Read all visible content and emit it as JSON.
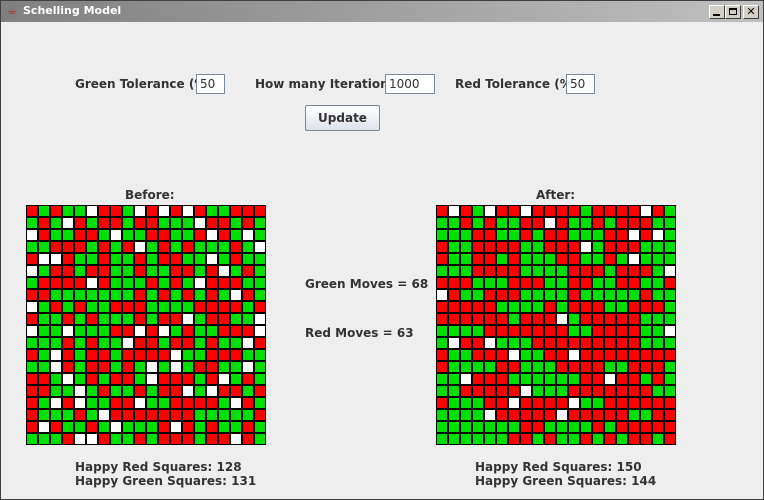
{
  "window": {
    "title": "Schelling Model"
  },
  "controls": {
    "green_tolerance_label": "Green Tolerance (%)",
    "green_tolerance_value": "50",
    "iterations_label": "How many Iterations?",
    "iterations_value": "1000",
    "red_tolerance_label": "Red Tolerance (%)",
    "red_tolerance_value": "50",
    "update_label": "Update"
  },
  "before": {
    "title": "Before:",
    "happy_red": "Happy Red Squares: 128",
    "happy_green": "Happy Green Squares: 131",
    "grid": [
      "RGRGGWRRGWRWRWRGGRRR",
      "GRGWRGRRGRRGGGWRRGRG",
      "WRGGRRGWGGRRGGRWRGWG",
      "GGRRRGRGRWGRGRGGGRGW",
      "RWWRGGRGGRGRRGGWGRGG",
      "WGRRGRRGGRGGRRGRWGRG",
      "GRRRRWRGGGRGRGWRRRGG",
      "RRGGGGGGGRGRGRGRGWRG",
      "WGRGRGGRRRGGGGRRRRGR",
      "RGGRGRGGGRGRRWGRRGGW",
      "WGGWGGGRRWRWGRGGRRRW",
      "GGGRGRGGWRRGRRGRGGWR",
      "RGWRGRRGRRRRWGGRRRGG",
      "GGWRGRRGRGWGWGRRGGWG",
      "RRGWGRGRRGWRRRGRWGRG",
      "RRGGWGRGGRGRRWGWRRGR",
      "RGWRWGGRRWGGRRRRGWRG",
      "RGGGRGWRRRRRRRGGGGGR",
      "RWRGGRGWGGGRWRGRGGRG",
      "GGGRWWRGGRGRRRGRRWRG"
    ]
  },
  "middle": {
    "green_moves": "Green Moves = 68",
    "red_moves": "Red Moves = 63"
  },
  "after": {
    "title": "After:",
    "happy_red": "Happy Red Squares: 150",
    "happy_green": "Happy Green Squares: 144",
    "grid": [
      "RWRGWRRWRRRRGRRRRWRG",
      "GGRGRGGRRWRGGRGRRRGG",
      "GGGRRGGRGRRGGGRRWRWG",
      "RGGRRRRGGRRRWGRRRGGG",
      "RGGRRGRGGGRRGGRGWGGG",
      "GGGRRRRGGGGRRRGRRRGW",
      "RRRGGGRRRGGRRGGRRGGR",
      "WRGGRRRGGGGRGGGGGRGG",
      "RRRRRGGGGRGRRRGGRRRG",
      "RRRRRRGRRRWGRRRRRGGG",
      "GGGGRRRRRRRGGRRRRGGW",
      "GWRRWGGGRRRRRRRRRGGG",
      "RGGRRRWGGRRWRRRRRRRR",
      "RGGGGRRGGGRRRRGGRRRG",
      "GGWRRRGGGGGGRRWRRGRG",
      "GGRRRRRWGGGRRRRRRRGG",
      "RGGGRRWRRRRWGGRRRRRR",
      "GGGGWRRRRRWRRRRRGGRR",
      "GGGGGGGRRGGGGRGRRRRR",
      "GGGGGGRRGRGGRGRGRRGR"
    ]
  }
}
